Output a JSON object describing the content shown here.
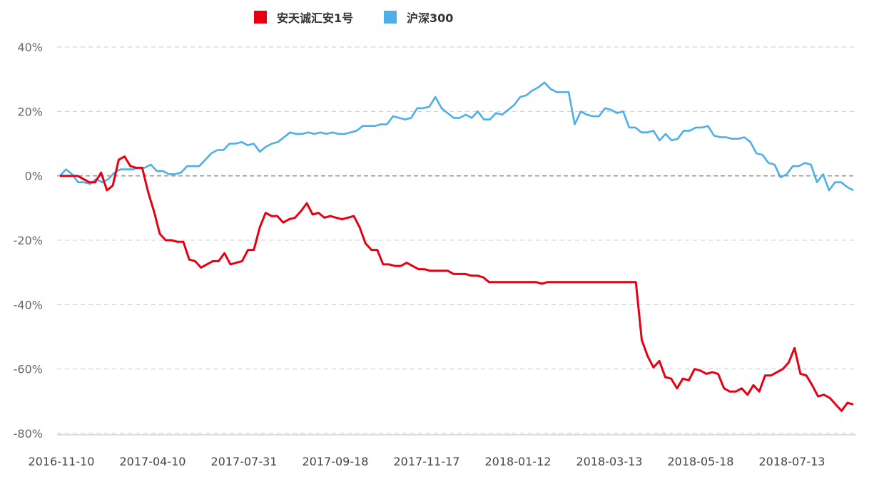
{
  "chart_data": {
    "type": "line",
    "title": "",
    "xlabel": "",
    "ylabel": "",
    "grid": true,
    "legend_placement": "top-center",
    "ylim": [
      -80,
      40
    ],
    "y_ticks": [
      "40%",
      "20%",
      "0%",
      "-20%",
      "-40%",
      "-60%",
      "-80%"
    ],
    "x_ticks": [
      "2016-11-10",
      "2017-04-10",
      "2017-07-31",
      "2017-09-18",
      "2017-11-17",
      "2018-01-12",
      "2018-03-13",
      "2018-05-18",
      "2018-07-13"
    ],
    "series": [
      {
        "name": "安天诚汇安1号",
        "color": "#e60012",
        "values": [
          0,
          0,
          0,
          0,
          -1,
          -2,
          -2,
          1,
          -4.5,
          -3,
          5,
          6,
          3,
          2.5,
          2.5,
          -5,
          -11,
          -18,
          -20,
          -20,
          -20.5,
          -20.5,
          -26,
          -26.5,
          -28.5,
          -27.5,
          -26.5,
          -26.5,
          -24,
          -27.5,
          -27,
          -26.5,
          -23,
          -23,
          -16,
          -11.5,
          -12.5,
          -12.5,
          -14.5,
          -13.5,
          -13,
          -11,
          -8.5,
          -12,
          -11.5,
          -13,
          -12.5,
          -13,
          -13.5,
          -13,
          -12.5,
          -16,
          -21,
          -23,
          -23,
          -27.5,
          -27.5,
          -28,
          -28,
          -27,
          -28,
          -29,
          -29,
          -29.5,
          -29.5,
          -29.5,
          -29.5,
          -30.5,
          -30.5,
          -30.5,
          -31,
          -31,
          -31.5,
          -33,
          -33,
          -33,
          -33,
          -33,
          -33,
          -33,
          -33,
          -33,
          -33.5,
          -33,
          -33,
          -33,
          -33,
          -33,
          -33,
          -33,
          -33,
          -33,
          -33,
          -33,
          -33,
          -33,
          -33,
          -33,
          -33,
          -51,
          -56,
          -59.5,
          -57.5,
          -62.5,
          -63,
          -66,
          -63,
          -63.5,
          -60,
          -60.5,
          -61.5,
          -61,
          -61.5,
          -66,
          -67,
          -67,
          -66,
          -68,
          -65,
          -67,
          -62,
          -62,
          -61,
          -60,
          -58,
          -53.5,
          -61.5,
          -62,
          -65,
          -68.5,
          -68,
          -69,
          -71,
          -73,
          -70.5,
          -71
        ]
      },
      {
        "name": "沪深300",
        "color": "#4daee8",
        "values": [
          0,
          2,
          0.5,
          -2,
          -2,
          -2.5,
          -1,
          -2,
          -1,
          1,
          2,
          2,
          2,
          2.5,
          2.5,
          3.5,
          1.5,
          1.5,
          0.5,
          0.5,
          1,
          3,
          3,
          3,
          5,
          7,
          8,
          8,
          10,
          10,
          10.5,
          9.5,
          10,
          7.5,
          9,
          10,
          10.5,
          12,
          13.5,
          13,
          13,
          13.5,
          13,
          13.5,
          13,
          13.5,
          13,
          13,
          13.5,
          14,
          15.5,
          15.5,
          15.5,
          16,
          16,
          18.5,
          18,
          17.5,
          18,
          21,
          21,
          21.5,
          24.5,
          21,
          19.5,
          18,
          18,
          19,
          18,
          20,
          17.5,
          17.5,
          19.5,
          19,
          20.5,
          22,
          24.5,
          25,
          26.5,
          27.5,
          29,
          27,
          26,
          26,
          26,
          16,
          20,
          19,
          18.5,
          18.5,
          21,
          20.5,
          19.5,
          20,
          15,
          15,
          13.5,
          13.5,
          14,
          11,
          13,
          11,
          11.5,
          14,
          14,
          15,
          15,
          15.5,
          12.5,
          12,
          12,
          11.5,
          11.5,
          12,
          10.5,
          7,
          6.5,
          4,
          3.5,
          -0.5,
          0.5,
          3,
          3,
          4,
          3.5,
          -2,
          0.5,
          -4.5,
          -2,
          -2,
          -3.5,
          -4.5
        ]
      }
    ]
  }
}
